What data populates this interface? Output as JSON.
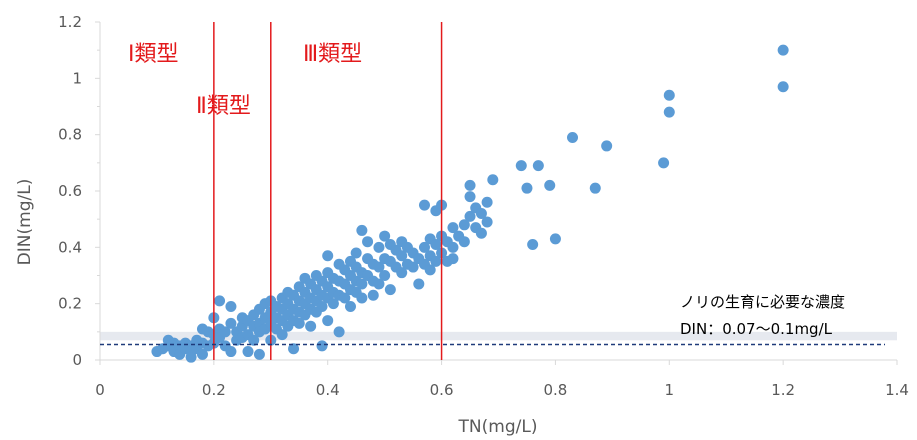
{
  "chart_data": {
    "type": "scatter",
    "title": "",
    "xlabel": "TN(mg/L)",
    "ylabel": "DIN(mg/L)",
    "xlim": [
      0,
      1.4
    ],
    "ylim": [
      0,
      1.2
    ],
    "x_ticks": [
      0,
      0.2,
      0.4,
      0.6,
      0.8,
      1.0,
      1.2,
      1.4
    ],
    "x_tick_labels": [
      "0",
      "0.2",
      "0.4",
      "0.6",
      "0.8",
      "1",
      "1.2",
      "1.4"
    ],
    "y_ticks": [
      0,
      0.2,
      0.4,
      0.6,
      0.8,
      1.0,
      1.2
    ],
    "y_tick_labels": [
      "0",
      "0.2",
      "0.4",
      "0.6",
      "0.8",
      "1",
      "1.2"
    ],
    "grid": false,
    "legend": "none",
    "colors": {
      "points": "#5b9bd5",
      "class_lines": "#e31a1c",
      "threshold_line": "#1f3a7a",
      "threshold_band": "#e6e9ef",
      "axis": "#d9d9d9"
    },
    "class_boundaries": [
      {
        "x": 0.2,
        "label": "Ⅰ類型",
        "region": "left"
      },
      {
        "x": 0.3,
        "label": "Ⅱ類型",
        "region": "left"
      },
      {
        "x": 0.6,
        "label": "Ⅲ類型",
        "region": "left"
      }
    ],
    "threshold_band": {
      "y_low": 0.07,
      "y_high": 0.1
    },
    "threshold_line": {
      "y": 0.055
    },
    "annotation": {
      "line1": "ノリの生育に必要な濃度",
      "line2": "DIN：0.07～0.1mg/L"
    },
    "points": [
      [
        0.1,
        0.03
      ],
      [
        0.11,
        0.04
      ],
      [
        0.12,
        0.07
      ],
      [
        0.12,
        0.05
      ],
      [
        0.13,
        0.06
      ],
      [
        0.13,
        0.03
      ],
      [
        0.14,
        0.05
      ],
      [
        0.14,
        0.02
      ],
      [
        0.15,
        0.06
      ],
      [
        0.15,
        0.04
      ],
      [
        0.16,
        0.05
      ],
      [
        0.16,
        0.03
      ],
      [
        0.16,
        0.01
      ],
      [
        0.17,
        0.07
      ],
      [
        0.17,
        0.04
      ],
      [
        0.18,
        0.02
      ],
      [
        0.18,
        0.06
      ],
      [
        0.18,
        0.11
      ],
      [
        0.19,
        0.1
      ],
      [
        0.19,
        0.05
      ],
      [
        0.2,
        0.15
      ],
      [
        0.2,
        0.09
      ],
      [
        0.2,
        0.06
      ],
      [
        0.21,
        0.21
      ],
      [
        0.21,
        0.11
      ],
      [
        0.21,
        0.08
      ],
      [
        0.22,
        0.05
      ],
      [
        0.22,
        0.1
      ],
      [
        0.23,
        0.19
      ],
      [
        0.23,
        0.13
      ],
      [
        0.23,
        0.03
      ],
      [
        0.24,
        0.07
      ],
      [
        0.24,
        0.1
      ],
      [
        0.25,
        0.12
      ],
      [
        0.25,
        0.15
      ],
      [
        0.25,
        0.08
      ],
      [
        0.26,
        0.14
      ],
      [
        0.26,
        0.09
      ],
      [
        0.26,
        0.03
      ],
      [
        0.27,
        0.16
      ],
      [
        0.27,
        0.12
      ],
      [
        0.27,
        0.07
      ],
      [
        0.28,
        0.18
      ],
      [
        0.28,
        0.13
      ],
      [
        0.28,
        0.1
      ],
      [
        0.28,
        0.02
      ],
      [
        0.29,
        0.15
      ],
      [
        0.29,
        0.2
      ],
      [
        0.29,
        0.11
      ],
      [
        0.3,
        0.17
      ],
      [
        0.3,
        0.13
      ],
      [
        0.3,
        0.21
      ],
      [
        0.3,
        0.07
      ],
      [
        0.31,
        0.19
      ],
      [
        0.31,
        0.15
      ],
      [
        0.31,
        0.11
      ],
      [
        0.32,
        0.22
      ],
      [
        0.32,
        0.18
      ],
      [
        0.32,
        0.14
      ],
      [
        0.32,
        0.09
      ],
      [
        0.33,
        0.2
      ],
      [
        0.33,
        0.16
      ],
      [
        0.33,
        0.24
      ],
      [
        0.33,
        0.12
      ],
      [
        0.34,
        0.23
      ],
      [
        0.34,
        0.18
      ],
      [
        0.34,
        0.14
      ],
      [
        0.34,
        0.04
      ],
      [
        0.35,
        0.26
      ],
      [
        0.35,
        0.21
      ],
      [
        0.35,
        0.17
      ],
      [
        0.35,
        0.13
      ],
      [
        0.36,
        0.24
      ],
      [
        0.36,
        0.2
      ],
      [
        0.36,
        0.16
      ],
      [
        0.36,
        0.29
      ],
      [
        0.37,
        0.27
      ],
      [
        0.37,
        0.22
      ],
      [
        0.37,
        0.18
      ],
      [
        0.37,
        0.12
      ],
      [
        0.38,
        0.3
      ],
      [
        0.38,
        0.25
      ],
      [
        0.38,
        0.21
      ],
      [
        0.38,
        0.17
      ],
      [
        0.39,
        0.28
      ],
      [
        0.39,
        0.23
      ],
      [
        0.39,
        0.19
      ],
      [
        0.39,
        0.05
      ],
      [
        0.4,
        0.37
      ],
      [
        0.4,
        0.31
      ],
      [
        0.4,
        0.26
      ],
      [
        0.4,
        0.22
      ],
      [
        0.4,
        0.14
      ],
      [
        0.41,
        0.29
      ],
      [
        0.41,
        0.24
      ],
      [
        0.41,
        0.2
      ],
      [
        0.42,
        0.34
      ],
      [
        0.42,
        0.28
      ],
      [
        0.42,
        0.23
      ],
      [
        0.42,
        0.1
      ],
      [
        0.43,
        0.32
      ],
      [
        0.43,
        0.27
      ],
      [
        0.43,
        0.22
      ],
      [
        0.44,
        0.35
      ],
      [
        0.44,
        0.3
      ],
      [
        0.44,
        0.25
      ],
      [
        0.44,
        0.19
      ],
      [
        0.45,
        0.38
      ],
      [
        0.45,
        0.33
      ],
      [
        0.45,
        0.28
      ],
      [
        0.45,
        0.24
      ],
      [
        0.46,
        0.46
      ],
      [
        0.46,
        0.31
      ],
      [
        0.46,
        0.27
      ],
      [
        0.46,
        0.22
      ],
      [
        0.47,
        0.42
      ],
      [
        0.47,
        0.36
      ],
      [
        0.47,
        0.3
      ],
      [
        0.48,
        0.34
      ],
      [
        0.48,
        0.28
      ],
      [
        0.48,
        0.23
      ],
      [
        0.49,
        0.4
      ],
      [
        0.49,
        0.33
      ],
      [
        0.49,
        0.27
      ],
      [
        0.5,
        0.44
      ],
      [
        0.5,
        0.36
      ],
      [
        0.5,
        0.3
      ],
      [
        0.51,
        0.41
      ],
      [
        0.51,
        0.35
      ],
      [
        0.51,
        0.25
      ],
      [
        0.52,
        0.39
      ],
      [
        0.52,
        0.33
      ],
      [
        0.53,
        0.42
      ],
      [
        0.53,
        0.37
      ],
      [
        0.53,
        0.31
      ],
      [
        0.54,
        0.4
      ],
      [
        0.54,
        0.34
      ],
      [
        0.55,
        0.38
      ],
      [
        0.55,
        0.33
      ],
      [
        0.56,
        0.36
      ],
      [
        0.56,
        0.27
      ],
      [
        0.57,
        0.55
      ],
      [
        0.57,
        0.4
      ],
      [
        0.57,
        0.34
      ],
      [
        0.58,
        0.43
      ],
      [
        0.58,
        0.37
      ],
      [
        0.58,
        0.32
      ],
      [
        0.59,
        0.53
      ],
      [
        0.59,
        0.41
      ],
      [
        0.59,
        0.35
      ],
      [
        0.6,
        0.55
      ],
      [
        0.6,
        0.44
      ],
      [
        0.6,
        0.38
      ],
      [
        0.61,
        0.42
      ],
      [
        0.61,
        0.35
      ],
      [
        0.62,
        0.47
      ],
      [
        0.62,
        0.4
      ],
      [
        0.62,
        0.36
      ],
      [
        0.63,
        0.44
      ],
      [
        0.64,
        0.48
      ],
      [
        0.64,
        0.42
      ],
      [
        0.65,
        0.62
      ],
      [
        0.65,
        0.58
      ],
      [
        0.65,
        0.51
      ],
      [
        0.66,
        0.54
      ],
      [
        0.66,
        0.47
      ],
      [
        0.67,
        0.52
      ],
      [
        0.67,
        0.45
      ],
      [
        0.68,
        0.56
      ],
      [
        0.68,
        0.49
      ],
      [
        0.69,
        0.64
      ],
      [
        0.74,
        0.69
      ],
      [
        0.75,
        0.61
      ],
      [
        0.76,
        0.41
      ],
      [
        0.77,
        0.69
      ],
      [
        0.79,
        0.62
      ],
      [
        0.8,
        0.43
      ],
      [
        0.83,
        0.79
      ],
      [
        0.87,
        0.61
      ],
      [
        0.89,
        0.76
      ],
      [
        0.99,
        0.7
      ],
      [
        1.0,
        0.94
      ],
      [
        1.0,
        0.88
      ],
      [
        1.2,
        1.1
      ],
      [
        1.2,
        0.97
      ]
    ]
  }
}
